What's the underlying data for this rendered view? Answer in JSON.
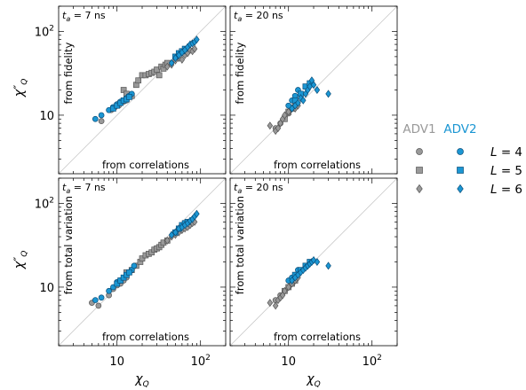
{
  "legend": {
    "groups": [
      {
        "label": "ADV1",
        "color": "#999999"
      },
      {
        "label": "ADV2",
        "color": "#1b96d3"
      }
    ],
    "rows": [
      {
        "label": "L = 4",
        "L": "4",
        "marker": "circle"
      },
      {
        "label": "L = 5",
        "L": "5",
        "marker": "square"
      },
      {
        "label": "L = 6",
        "L": "6",
        "marker": "diamond"
      }
    ]
  },
  "chart_data": [
    {
      "type": "scatter",
      "panel": "top-left",
      "annotation": "t_a = 7 ns",
      "ta": "7",
      "ylabel_text": "from fidelity",
      "xlabel_text": "from correlations",
      "axis_xlabel": "",
      "axis_ylabel": "χ''Q",
      "xscale": "log",
      "yscale": "log",
      "xlim": [
        2,
        200
      ],
      "ylim": [
        2,
        200
      ],
      "x_ticks": [],
      "y_ticks": [
        "10",
        "10²"
      ],
      "diagonal": true,
      "series": [
        {
          "group": "ADV1",
          "L": 4,
          "marker": "circle",
          "x": [
            6.5,
            8.5,
            9.5,
            10,
            10.5,
            11,
            12,
            13
          ],
          "y": [
            8.5,
            11.5,
            12.5,
            13,
            13,
            14,
            14.5,
            15
          ]
        },
        {
          "group": "ADV1",
          "L": 5,
          "marker": "square",
          "x": [
            12,
            13,
            15,
            17,
            18,
            20,
            22,
            24,
            26,
            28,
            30,
            32,
            34,
            36,
            38,
            40
          ],
          "y": [
            20,
            18,
            17,
            23,
            26,
            30,
            30,
            31,
            32,
            33,
            35,
            30,
            38,
            36,
            40,
            42
          ]
        },
        {
          "group": "ADV1",
          "L": 6,
          "marker": "diamond",
          "x": [
            40,
            45,
            50,
            55,
            60,
            65,
            70,
            75,
            80,
            85
          ],
          "y": [
            38,
            40,
            45,
            48,
            46,
            52,
            55,
            60,
            58,
            62
          ]
        },
        {
          "group": "ADV2",
          "L": 4,
          "marker": "circle",
          "x": [
            5.5,
            6.5,
            8,
            9,
            10,
            11,
            12,
            13,
            14,
            15
          ],
          "y": [
            9,
            10,
            11.5,
            12.5,
            13.5,
            14.5,
            15,
            16,
            17,
            18
          ]
        },
        {
          "group": "ADV2",
          "L": 5,
          "marker": "square",
          "x": [
            9,
            10,
            11,
            12,
            13,
            14,
            50,
            55,
            60,
            65
          ],
          "y": [
            12,
            13,
            14,
            15,
            15.5,
            16.5,
            50,
            55,
            58,
            62
          ]
        },
        {
          "group": "ADV2",
          "L": 6,
          "marker": "diamond",
          "x": [
            45,
            50,
            55,
            60,
            65,
            70,
            75,
            80,
            85,
            90
          ],
          "y": [
            42,
            48,
            52,
            56,
            60,
            65,
            70,
            72,
            75,
            80
          ]
        }
      ]
    },
    {
      "type": "scatter",
      "panel": "top-right",
      "annotation": "t_a = 20 ns",
      "ta": "20",
      "ylabel_text": "from fidelity",
      "xlabel_text": "from correlations",
      "axis_xlabel": "",
      "axis_ylabel": "",
      "xscale": "log",
      "yscale": "log",
      "xlim": [
        2,
        200
      ],
      "ylim": [
        2,
        200
      ],
      "x_ticks": [],
      "y_ticks": [],
      "diagonal": true,
      "series": [
        {
          "group": "ADV1",
          "L": 4,
          "marker": "circle",
          "x": [
            7,
            8,
            9,
            10
          ],
          "y": [
            7,
            8,
            9.5,
            10.5
          ]
        },
        {
          "group": "ADV1",
          "L": 5,
          "marker": "square",
          "x": [
            9,
            10,
            11,
            12
          ],
          "y": [
            9,
            11,
            12,
            13
          ]
        },
        {
          "group": "ADV1",
          "L": 6,
          "marker": "diamond",
          "x": [
            6,
            7,
            7.5,
            8,
            8.5,
            9,
            10,
            11,
            12,
            13
          ],
          "y": [
            7.5,
            6.5,
            7,
            8,
            9,
            10,
            11,
            12,
            12,
            13
          ]
        },
        {
          "group": "ADV2",
          "L": 4,
          "marker": "circle",
          "x": [
            10,
            11,
            12,
            13
          ],
          "y": [
            13,
            15,
            17,
            20
          ]
        },
        {
          "group": "ADV2",
          "L": 5,
          "marker": "square",
          "x": [
            12,
            14,
            16,
            18
          ],
          "y": [
            15,
            18,
            22,
            24
          ]
        },
        {
          "group": "ADV2",
          "L": 6,
          "marker": "diamond",
          "x": [
            11,
            12,
            13,
            14,
            15,
            16,
            17,
            18,
            19,
            20,
            22,
            30
          ],
          "y": [
            12,
            13,
            14,
            16,
            15,
            18,
            20,
            22,
            26,
            23,
            20,
            18
          ]
        }
      ]
    },
    {
      "type": "scatter",
      "panel": "bottom-left",
      "annotation": "t_a = 7 ns",
      "ta": "7",
      "ylabel_text": "from total variation",
      "xlabel_text": "from correlations",
      "axis_xlabel": "χQ",
      "axis_ylabel": "χ''Q",
      "xscale": "log",
      "yscale": "log",
      "xlim": [
        2,
        200
      ],
      "ylim": [
        2,
        200
      ],
      "x_ticks": [
        "10",
        "10²"
      ],
      "y_ticks": [
        "10",
        "10²"
      ],
      "diagonal": true,
      "series": [
        {
          "group": "ADV1",
          "L": 4,
          "marker": "circle",
          "x": [
            5,
            6,
            8,
            9,
            10,
            11,
            12,
            13
          ],
          "y": [
            6.5,
            6,
            8,
            9.5,
            10.5,
            11,
            12,
            13
          ]
        },
        {
          "group": "ADV1",
          "L": 5,
          "marker": "square",
          "x": [
            13,
            15,
            17,
            19,
            20,
            22,
            24,
            26,
            28,
            30,
            32,
            34,
            36,
            40
          ],
          "y": [
            15,
            16,
            18,
            20,
            22,
            24,
            25,
            26,
            28,
            29,
            30,
            32,
            34,
            36
          ]
        },
        {
          "group": "ADV1",
          "L": 6,
          "marker": "diamond",
          "x": [
            40,
            45,
            50,
            55,
            60,
            65,
            70,
            75,
            80,
            85
          ],
          "y": [
            36,
            40,
            42,
            45,
            48,
            50,
            52,
            55,
            58,
            60
          ]
        },
        {
          "group": "ADV2",
          "L": 4,
          "marker": "circle",
          "x": [
            5.5,
            6.5,
            8,
            9,
            10,
            11,
            12,
            13,
            14,
            15,
            16
          ],
          "y": [
            7,
            7.5,
            9,
            10,
            11.5,
            12,
            13,
            14,
            15,
            16,
            18
          ]
        },
        {
          "group": "ADV2",
          "L": 5,
          "marker": "square",
          "x": [
            10,
            11,
            12,
            13,
            14,
            50,
            55,
            60,
            65,
            70
          ],
          "y": [
            11,
            12,
            13,
            14,
            15,
            45,
            50,
            55,
            58,
            60
          ]
        },
        {
          "group": "ADV2",
          "L": 6,
          "marker": "diamond",
          "x": [
            45,
            50,
            55,
            60,
            65,
            70,
            75,
            80,
            85,
            90
          ],
          "y": [
            42,
            45,
            50,
            52,
            55,
            58,
            62,
            65,
            70,
            75
          ]
        }
      ]
    },
    {
      "type": "scatter",
      "panel": "bottom-right",
      "annotation": "t_a = 20 ns",
      "ta": "20",
      "ylabel_text": "from total variation",
      "xlabel_text": "from correlations",
      "axis_xlabel": "χQ",
      "axis_ylabel": "",
      "xscale": "log",
      "yscale": "log",
      "xlim": [
        2,
        200
      ],
      "ylim": [
        2,
        200
      ],
      "x_ticks": [
        "10",
        "10²"
      ],
      "y_ticks": [],
      "diagonal": true,
      "series": [
        {
          "group": "ADV1",
          "L": 4,
          "marker": "circle",
          "x": [
            7,
            8,
            9,
            10
          ],
          "y": [
            7,
            8,
            9,
            10
          ]
        },
        {
          "group": "ADV1",
          "L": 5,
          "marker": "square",
          "x": [
            9,
            10,
            11,
            12
          ],
          "y": [
            9,
            10,
            11,
            12
          ]
        },
        {
          "group": "ADV1",
          "L": 6,
          "marker": "diamond",
          "x": [
            6,
            7,
            7.5,
            8,
            8.5,
            9,
            10,
            11,
            12,
            13
          ],
          "y": [
            6.5,
            6,
            7,
            7.5,
            8,
            9,
            10,
            11,
            12,
            13
          ]
        },
        {
          "group": "ADV2",
          "L": 4,
          "marker": "circle",
          "x": [
            10,
            11,
            12,
            13
          ],
          "y": [
            12,
            13,
            14,
            16
          ]
        },
        {
          "group": "ADV2",
          "L": 5,
          "marker": "square",
          "x": [
            12,
            14,
            16,
            18
          ],
          "y": [
            14,
            16,
            18,
            20
          ]
        },
        {
          "group": "ADV2",
          "L": 6,
          "marker": "diamond",
          "x": [
            11,
            12,
            13,
            14,
            15,
            16,
            17,
            18,
            19,
            20,
            22,
            30
          ],
          "y": [
            12,
            13,
            14,
            15,
            16,
            17,
            18,
            19,
            20,
            21,
            20,
            18
          ]
        }
      ]
    }
  ]
}
